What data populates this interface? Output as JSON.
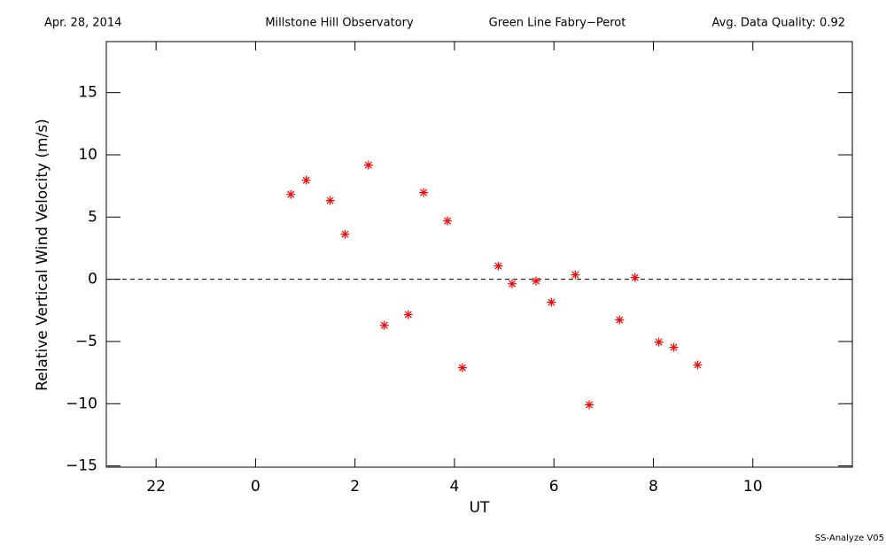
{
  "chart_data": {
    "type": "scatter",
    "header_left": "Apr. 28, 2014",
    "header_center": "Millstone Hill Observatory",
    "header_instrument": "Green Line Fabry−Perot",
    "header_right": "Avg. Data Quality: 0.92",
    "footer": "SS-Analyze V05",
    "x_label": "UT",
    "y_label": "Relative Vertical Wind Velocity (m/s)",
    "color": "#ff0000",
    "x": [
      0.71,
      1.02,
      1.5,
      1.8,
      2.27,
      2.59,
      3.07,
      3.38,
      3.86,
      4.16,
      4.88,
      5.16,
      5.64,
      5.95,
      6.43,
      6.71,
      7.32,
      7.63,
      8.11,
      8.41,
      8.89
    ],
    "values": [
      6.82,
      7.96,
      6.33,
      3.62,
      9.17,
      -3.7,
      -2.84,
      6.97,
      4.69,
      -7.11,
      1.07,
      -0.36,
      -0.14,
      -1.85,
      0.36,
      -10.09,
      -3.27,
      0.14,
      -5.05,
      -5.47,
      -6.89
    ],
    "xlim": [
      -3,
      12
    ],
    "xticks": [
      {
        "value": -2,
        "label": "22"
      },
      0,
      2,
      4,
      6,
      8,
      10
    ],
    "ylim": [
      -15.1,
      19.1
    ],
    "yticks": [
      {
        "value": -15,
        "label": "−15"
      },
      {
        "value": -10,
        "label": "−10"
      },
      {
        "value": -5,
        "label": "−5"
      },
      0,
      5,
      10,
      15
    ],
    "reference_line": 0
  }
}
